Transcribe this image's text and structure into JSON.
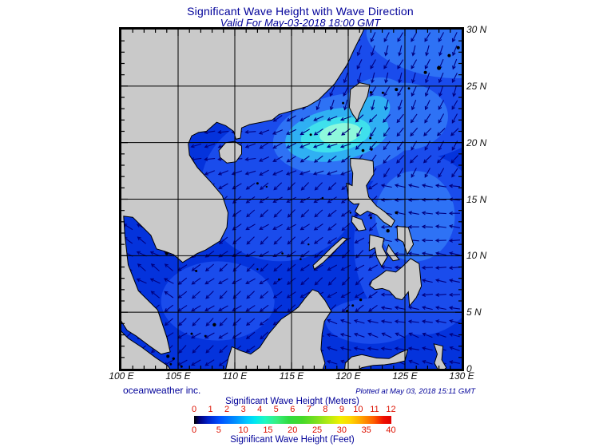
{
  "header": {
    "title": "Significant Wave Height with Wave Direction",
    "subtitle": "Valid For May-03-2018 18:00 GMT"
  },
  "footer": {
    "credit": "oceanweather inc.",
    "plotted": "Plotted at May 03, 2018 15:11 GMT"
  },
  "colorbar": {
    "title_meters": "Significant Wave Height (Meters)",
    "title_feet": "Significant Wave Height (Feet)",
    "meters_ticks": [
      "0",
      "1",
      "2",
      "3",
      "4",
      "5",
      "6",
      "7",
      "8",
      "9",
      "10",
      "11",
      "12"
    ],
    "feet_ticks": [
      "0",
      "5",
      "10",
      "15",
      "20",
      "25",
      "30",
      "35",
      "40"
    ],
    "tick_color": "#dd1100",
    "label_color": "#000099"
  },
  "map": {
    "extent": {
      "lon_min": 100,
      "lon_max": 130,
      "lat_min": 0,
      "lat_max": 30
    },
    "x_axis_labels": [
      "100 E",
      "105 E",
      "110 E",
      "115 E",
      "120 E",
      "125 E",
      "130 E"
    ],
    "y_axis_labels": [
      "30 N",
      "25 N",
      "20 N",
      "15 N",
      "10 N",
      "5 N",
      "0"
    ],
    "grid_lons": [
      105,
      110,
      115,
      120,
      125
    ],
    "grid_lats": [
      5,
      10,
      15,
      20,
      25
    ],
    "colors": {
      "sea_base": "#0433dc",
      "land": "#c9c9c9",
      "coastline": "#000000",
      "grid": "#000000",
      "arrow": "#000080",
      "frame": "#000000"
    },
    "sea_levels": [
      {
        "fill": "#1a4cec",
        "ellipses": [
          [
            125.5,
            25.5,
            8.5,
            7,
            0
          ],
          [
            126.5,
            11,
            6,
            8,
            0
          ],
          [
            114,
            16,
            7,
            6.5,
            0
          ],
          [
            108.5,
            6,
            5,
            3.5,
            0
          ],
          [
            120.5,
            21,
            7.5,
            4.5,
            0
          ],
          [
            122,
            4.2,
            4,
            2,
            0
          ]
        ]
      },
      {
        "fill": "#2e72f5",
        "ellipses": [
          [
            127.5,
            28.7,
            6,
            2.8,
            12
          ],
          [
            119.8,
            20.8,
            6.5,
            3.5,
            -10
          ],
          [
            122.5,
            23.2,
            3,
            2.5,
            -20
          ],
          [
            124.8,
            22.3,
            4,
            3,
            0
          ],
          [
            125.9,
            13.5,
            3.5,
            4,
            0
          ]
        ]
      },
      {
        "fill": "#2fb0f3",
        "ellipses": [
          [
            119.0,
            20.7,
            4.6,
            2.3,
            -10
          ],
          [
            122.0,
            22.7,
            1.8,
            1.3,
            -30
          ]
        ]
      },
      {
        "fill": "#3fe0ec",
        "ellipses": [
          [
            118.9,
            20.7,
            3.1,
            1.5,
            -10
          ]
        ]
      },
      {
        "fill": "#8ef8dc",
        "ellipses": [
          [
            119.3,
            20.8,
            1.85,
            0.9,
            -8
          ]
        ]
      }
    ],
    "land_polygons": [
      {
        "name": "mainland-asia",
        "pts": [
          [
            99.5,
            30.5
          ],
          [
            121.6,
            30.5
          ],
          [
            121.2,
            29.6
          ],
          [
            120.5,
            28.2
          ],
          [
            119.9,
            26.9
          ],
          [
            118.8,
            25.2
          ],
          [
            117.4,
            23.8
          ],
          [
            116.4,
            23.2
          ],
          [
            115.0,
            22.8
          ],
          [
            113.9,
            22.5
          ],
          [
            113.3,
            22.0
          ],
          [
            112.3,
            21.8
          ],
          [
            111.3,
            21.6
          ],
          [
            110.6,
            21.3
          ],
          [
            110.5,
            20.4
          ],
          [
            110.1,
            20.3
          ],
          [
            109.9,
            21.0
          ],
          [
            109.2,
            21.5
          ],
          [
            108.4,
            21.8
          ],
          [
            107.5,
            21.0
          ],
          [
            106.8,
            20.9
          ],
          [
            106.2,
            20.6
          ],
          [
            105.9,
            19.9
          ],
          [
            106.0,
            18.9
          ],
          [
            106.7,
            17.8
          ],
          [
            107.9,
            16.5
          ],
          [
            108.9,
            15.3
          ],
          [
            109.4,
            13.8
          ],
          [
            109.3,
            12.5
          ],
          [
            108.7,
            11.3
          ],
          [
            107.4,
            10.5
          ],
          [
            106.7,
            10.2
          ],
          [
            105.4,
            9.4
          ],
          [
            104.6,
            10.1
          ],
          [
            103.8,
            10.4
          ],
          [
            103.1,
            10.6
          ],
          [
            102.6,
            11.8
          ],
          [
            101.8,
            12.6
          ],
          [
            101.0,
            13.4
          ],
          [
            100.2,
            13.5
          ],
          [
            100.3,
            11.8
          ],
          [
            100.6,
            9.2
          ],
          [
            101.5,
            6.9
          ],
          [
            102.3,
            6.1
          ],
          [
            103.2,
            5.2
          ],
          [
            103.6,
            4.0
          ],
          [
            104.0,
            2.8
          ],
          [
            104.3,
            1.5
          ],
          [
            103.5,
            1.3
          ],
          [
            102.5,
            2.0
          ],
          [
            101.3,
            2.9
          ],
          [
            100.5,
            3.4
          ],
          [
            99.8,
            4.5
          ],
          [
            99.5,
            6.0
          ]
        ]
      },
      {
        "name": "hainan",
        "pts": [
          [
            108.6,
            19.3
          ],
          [
            109.2,
            20.0
          ],
          [
            110.0,
            20.1
          ],
          [
            110.6,
            19.7
          ],
          [
            110.6,
            19.0
          ],
          [
            110.1,
            18.3
          ],
          [
            109.3,
            18.2
          ],
          [
            108.7,
            18.7
          ]
        ]
      },
      {
        "name": "taiwan",
        "pts": [
          [
            120.1,
            23.1
          ],
          [
            120.2,
            24.7
          ],
          [
            121.0,
            25.3
          ],
          [
            121.9,
            25.1
          ],
          [
            121.7,
            24.1
          ],
          [
            121.0,
            22.6
          ],
          [
            120.8,
            21.95
          ],
          [
            120.4,
            22.5
          ]
        ]
      },
      {
        "name": "luzon",
        "pts": [
          [
            120.2,
            18.6
          ],
          [
            121.3,
            18.55
          ],
          [
            122.2,
            18.35
          ],
          [
            122.25,
            17.2
          ],
          [
            121.6,
            16.2
          ],
          [
            121.8,
            15.2
          ],
          [
            122.5,
            14.4
          ],
          [
            123.2,
            13.9
          ],
          [
            124.1,
            13.1
          ],
          [
            123.8,
            12.55
          ],
          [
            123.1,
            13.0
          ],
          [
            122.5,
            13.6
          ],
          [
            121.7,
            13.95
          ],
          [
            121.05,
            13.55
          ],
          [
            120.6,
            13.9
          ],
          [
            120.95,
            14.6
          ],
          [
            120.5,
            14.55
          ],
          [
            120.05,
            14.9
          ],
          [
            119.85,
            16.4
          ],
          [
            120.35,
            16.2
          ],
          [
            120.4,
            17.3
          ],
          [
            120.2,
            18.0
          ]
        ]
      },
      {
        "name": "mindoro",
        "pts": [
          [
            120.35,
            13.5
          ],
          [
            121.2,
            13.2
          ],
          [
            121.55,
            12.3
          ],
          [
            120.9,
            12.2
          ],
          [
            120.3,
            13.0
          ]
        ]
      },
      {
        "name": "samar-leyte",
        "pts": [
          [
            124.3,
            12.6
          ],
          [
            125.3,
            12.5
          ],
          [
            125.75,
            11.0
          ],
          [
            125.2,
            10.1
          ],
          [
            124.85,
            11.2
          ],
          [
            124.35,
            11.5
          ]
        ]
      },
      {
        "name": "panay-negros",
        "pts": [
          [
            121.9,
            11.85
          ],
          [
            123.15,
            11.55
          ],
          [
            123.0,
            10.8
          ],
          [
            123.45,
            9.9
          ],
          [
            122.95,
            9.05
          ],
          [
            122.5,
            9.9
          ],
          [
            122.35,
            10.7
          ],
          [
            121.85,
            10.45
          ]
        ]
      },
      {
        "name": "cebu-bohol",
        "pts": [
          [
            123.55,
            10.95
          ],
          [
            124.05,
            10.2
          ],
          [
            124.5,
            9.65
          ],
          [
            123.95,
            9.55
          ],
          [
            123.35,
            10.35
          ]
        ]
      },
      {
        "name": "mindanao",
        "pts": [
          [
            121.9,
            7.35
          ],
          [
            122.1,
            7.8
          ],
          [
            122.7,
            8.2
          ],
          [
            123.35,
            8.7
          ],
          [
            124.2,
            8.55
          ],
          [
            124.75,
            9.0
          ],
          [
            125.5,
            9.75
          ],
          [
            126.25,
            9.3
          ],
          [
            126.45,
            7.3
          ],
          [
            126.0,
            6.3
          ],
          [
            125.4,
            5.55
          ],
          [
            125.3,
            6.8
          ],
          [
            124.75,
            6.1
          ],
          [
            124.2,
            6.25
          ],
          [
            123.6,
            6.9
          ],
          [
            123.0,
            7.1
          ],
          [
            122.35,
            7.0
          ]
        ]
      },
      {
        "name": "palawan",
        "pts": [
          [
            117.0,
            8.8
          ],
          [
            117.8,
            9.4
          ],
          [
            118.7,
            10.3
          ],
          [
            119.5,
            11.1
          ],
          [
            119.9,
            11.5
          ],
          [
            119.5,
            11.6
          ],
          [
            118.5,
            10.7
          ],
          [
            117.6,
            9.8
          ],
          [
            116.9,
            9.15
          ]
        ]
      },
      {
        "name": "borneo",
        "pts": [
          [
            109.1,
            -0.5
          ],
          [
            109.45,
            1.0
          ],
          [
            109.75,
            1.95
          ],
          [
            110.5,
            1.6
          ],
          [
            111.4,
            1.3
          ],
          [
            112.2,
            1.9
          ],
          [
            113.0,
            3.1
          ],
          [
            114.1,
            4.4
          ],
          [
            115.0,
            5.0
          ],
          [
            115.6,
            5.45
          ],
          [
            116.2,
            6.25
          ],
          [
            116.85,
            7.0
          ],
          [
            117.35,
            6.8
          ],
          [
            117.95,
            6.05
          ],
          [
            118.5,
            5.1
          ],
          [
            117.9,
            4.2
          ],
          [
            117.7,
            3.1
          ],
          [
            117.6,
            1.7
          ],
          [
            117.95,
            0.5
          ],
          [
            117.6,
            -0.5
          ]
        ]
      },
      {
        "name": "sumatra",
        "pts": [
          [
            99.5,
            3.8
          ],
          [
            100.6,
            2.7
          ],
          [
            101.8,
            1.9
          ],
          [
            103.0,
            1.0
          ],
          [
            104.1,
            0.25
          ],
          [
            104.6,
            -0.5
          ],
          [
            99.5,
            -0.5
          ]
        ]
      },
      {
        "name": "sulawesi",
        "pts": [
          [
            119.65,
            -0.5
          ],
          [
            119.75,
            0.5
          ],
          [
            120.3,
            1.05
          ],
          [
            121.2,
            1.25
          ],
          [
            122.5,
            0.95
          ],
          [
            123.6,
            0.9
          ],
          [
            124.6,
            1.45
          ],
          [
            125.25,
            1.7
          ],
          [
            125.0,
            0.7
          ],
          [
            124.2,
            0.5
          ],
          [
            123.2,
            0.35
          ],
          [
            122.2,
            0.3
          ],
          [
            121.2,
            0.1
          ],
          [
            120.6,
            -0.3
          ],
          [
            120.3,
            -0.5
          ]
        ]
      },
      {
        "name": "halmahera",
        "pts": [
          [
            127.55,
            2.2
          ],
          [
            128.35,
            2.0
          ],
          [
            128.25,
            0.8
          ],
          [
            128.65,
            0.1
          ],
          [
            128.1,
            -0.4
          ],
          [
            127.6,
            0.5
          ],
          [
            127.85,
            1.3
          ]
        ]
      }
    ],
    "small_islands": [
      [
        122.0,
        24.45,
        1.5
      ],
      [
        123.05,
        24.4,
        1.5
      ],
      [
        124.25,
        24.7,
        2
      ],
      [
        125.35,
        24.8,
        1.5
      ],
      [
        126.8,
        26.2,
        2
      ],
      [
        128.0,
        26.6,
        2.5
      ],
      [
        128.9,
        27.7,
        2
      ],
      [
        129.7,
        28.4,
        2
      ],
      [
        121.95,
        20.4,
        1.5
      ],
      [
        121.3,
        19.3,
        1.8
      ],
      [
        122.05,
        19.4,
        1.5
      ],
      [
        119.55,
        23.5,
        1.5
      ],
      [
        116.7,
        20.7,
        1.5
      ],
      [
        112.0,
        16.4,
        1.5
      ],
      [
        112.8,
        16.1,
        1.2
      ],
      [
        117.75,
        15.1,
        1.2
      ],
      [
        114.2,
        10.2,
        1.3
      ],
      [
        115.8,
        9.7,
        1.3
      ],
      [
        113.9,
        7.9,
        1.3
      ],
      [
        112.0,
        8.8,
        1.2
      ],
      [
        116.5,
        11.0,
        1.2
      ],
      [
        106.6,
        8.65,
        1.5
      ],
      [
        104.0,
        10.2,
        2
      ],
      [
        108.2,
        3.9,
        2.2
      ],
      [
        107.4,
        2.9,
        1.3
      ],
      [
        106.2,
        3.1,
        1.5
      ],
      [
        104.1,
        1.1,
        2
      ],
      [
        104.6,
        0.9,
        1.7
      ],
      [
        104.35,
        0.4,
        1.4
      ],
      [
        105.3,
        0.2,
        1.5
      ],
      [
        106.1,
        -0.3,
        2
      ],
      [
        121.1,
        6.1,
        1.7
      ],
      [
        120.4,
        5.6,
        1.5
      ],
      [
        119.9,
        5.1,
        1.6
      ],
      [
        120.2,
        13.8,
        1.2
      ],
      [
        124.25,
        13.8,
        1.8
      ],
      [
        122.0,
        13.35,
        1.5
      ],
      [
        123.5,
        12.2,
        2.2
      ]
    ],
    "arrow_regions": [
      {
        "lat": [
          23,
          30.5
        ],
        "lon": [
          99,
          131
        ],
        "dir": 112
      },
      {
        "lat": [
          17,
          23
        ],
        "lon": [
          120.5,
          131
        ],
        "dir": 127
      },
      {
        "lat": [
          17,
          23
        ],
        "lon": [
          111.5,
          120.5
        ],
        "dir": 152
      },
      {
        "lat": [
          17,
          23
        ],
        "lon": [
          99,
          111.5
        ],
        "dir": 167
      },
      {
        "lat": [
          4.5,
          17
        ],
        "lon": [
          122.3,
          131
        ],
        "dir": 184
      },
      {
        "lat": [
          5.5,
          13.6
        ],
        "lon": [
          99,
          104.6
        ],
        "dir": 213
      },
      {
        "lat": [
          -1,
          4.5
        ],
        "lon": [
          116,
          131
        ],
        "dir": 196
      },
      {
        "lat": [
          -1,
          5.5
        ],
        "lon": [
          99,
          116
        ],
        "dir": 142
      },
      {
        "lat": [
          5.5,
          17
        ],
        "lon": [
          104.6,
          122.3
        ],
        "dir": 143
      }
    ],
    "arrow_default_dir": 143
  }
}
